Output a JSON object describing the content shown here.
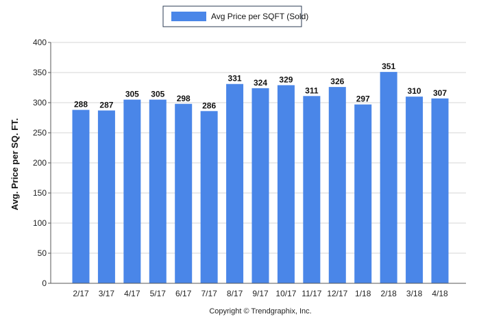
{
  "chart_data": {
    "type": "bar",
    "title": "",
    "xlabel": "",
    "ylabel": "Avg. Price per SQ. FT.",
    "ylim": [
      0,
      400
    ],
    "yticks": [
      0,
      50,
      100,
      150,
      200,
      250,
      300,
      350,
      400
    ],
    "categories": [
      "2/17",
      "3/17",
      "4/17",
      "5/17",
      "6/17",
      "7/17",
      "8/17",
      "9/17",
      "10/17",
      "11/17",
      "12/17",
      "1/18",
      "2/18",
      "3/18",
      "4/18"
    ],
    "series": [
      {
        "name": "Avg Price per SQFT (Sold)",
        "color": "#4a86e8",
        "values": [
          288,
          287,
          305,
          305,
          298,
          286,
          331,
          324,
          329,
          311,
          326,
          297,
          351,
          310,
          307
        ]
      }
    ],
    "grid": true,
    "legend_position": "top-center"
  },
  "footer": {
    "copyright": "Copyright © Trendgraphix, Inc."
  }
}
